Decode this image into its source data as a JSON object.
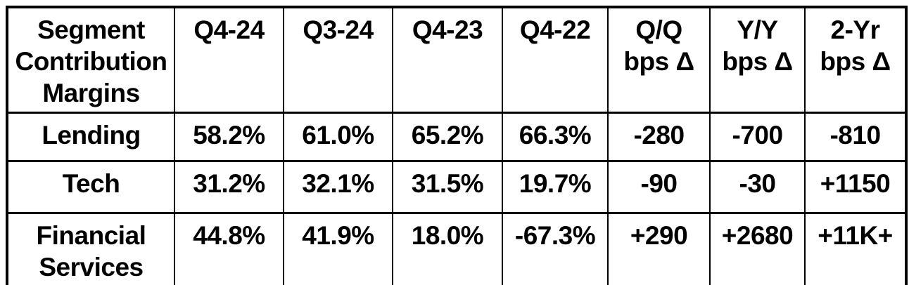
{
  "table": {
    "header": [
      "Segment\nContribution\nMargins",
      "Q4-24",
      "Q3-24",
      "Q4-23",
      "Q4-22",
      "Q/Q\nbps Δ",
      "Y/Y\nbps Δ",
      "2-Yr\nbps Δ"
    ],
    "rows": [
      {
        "cells": [
          "Lending",
          "58.2%",
          "61.0%",
          "65.2%",
          "66.3%",
          "-280",
          "-700",
          "-810"
        ]
      },
      {
        "cells": [
          "Tech",
          "31.2%",
          "32.1%",
          "31.5%",
          "19.7%",
          "-90",
          "-30",
          "+1150"
        ]
      },
      {
        "cells": [
          "Financial\nServices",
          "44.8%",
          "41.9%",
          "18.0%",
          "-67.3%",
          "+290",
          "+2680",
          "+11K+"
        ]
      }
    ]
  },
  "colors": {
    "border": "#000000",
    "text": "#000000",
    "background": "#ffffff"
  },
  "chart_data": {
    "type": "table",
    "title": "Segment Contribution Margins",
    "columns": [
      "Segment Contribution Margins",
      "Q4-24",
      "Q3-24",
      "Q4-23",
      "Q4-22",
      "Q/Q bps Δ",
      "Y/Y bps Δ",
      "2-Yr bps Δ"
    ],
    "rows": [
      [
        "Lending",
        "58.2%",
        "61.0%",
        "65.2%",
        "66.3%",
        "-280",
        "-700",
        "-810"
      ],
      [
        "Tech",
        "31.2%",
        "32.1%",
        "31.5%",
        "19.7%",
        "-90",
        "-30",
        "+1150"
      ],
      [
        "Financial Services",
        "44.8%",
        "41.9%",
        "18.0%",
        "-67.3%",
        "+290",
        "+2680",
        "+11K+"
      ]
    ],
    "notes": {
      "units_quarters": "percent contribution margin",
      "units_deltas": "basis points change",
      "numeric_margins": {
        "Lending": [
          58.2,
          61.0,
          65.2,
          66.3
        ],
        "Tech": [
          31.2,
          32.1,
          31.5,
          19.7
        ],
        "Financial Services": [
          44.8,
          41.9,
          18.0,
          -67.3
        ]
      },
      "numeric_bps": {
        "Lending": [
          -280,
          -700,
          -810
        ],
        "Tech": [
          -90,
          -30,
          1150
        ],
        "Financial Services": [
          290,
          2680,
          11000
        ]
      }
    }
  }
}
